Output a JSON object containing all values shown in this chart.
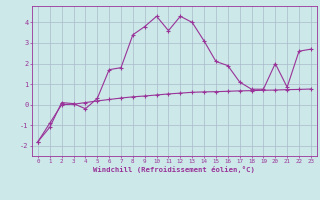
{
  "xlabel": "Windchill (Refroidissement éolien,°C)",
  "bg_color": "#cce8e8",
  "line_color": "#993399",
  "grid_color": "#aabbcc",
  "x_values": [
    0,
    1,
    2,
    3,
    4,
    5,
    6,
    7,
    8,
    9,
    10,
    11,
    12,
    13,
    14,
    15,
    16,
    17,
    18,
    19,
    20,
    21,
    22,
    23
  ],
  "line1_y": [
    -1.8,
    -1.1,
    0.1,
    0.05,
    -0.2,
    0.3,
    1.7,
    1.8,
    3.4,
    3.8,
    4.3,
    3.6,
    4.3,
    4.0,
    3.1,
    2.1,
    1.9,
    1.1,
    0.75,
    0.75,
    2.0,
    0.85,
    2.6,
    2.7
  ],
  "line2_y": [
    -1.8,
    -0.9,
    0.0,
    0.02,
    0.1,
    0.18,
    0.25,
    0.32,
    0.38,
    0.42,
    0.47,
    0.52,
    0.56,
    0.6,
    0.62,
    0.63,
    0.65,
    0.67,
    0.68,
    0.7,
    0.71,
    0.73,
    0.74,
    0.76
  ],
  "ylim": [
    -2.5,
    4.8
  ],
  "xlim": [
    -0.5,
    23.5
  ],
  "yticks": [
    -2,
    -1,
    0,
    1,
    2,
    3,
    4
  ],
  "xticks": [
    0,
    1,
    2,
    3,
    4,
    5,
    6,
    7,
    8,
    9,
    10,
    11,
    12,
    13,
    14,
    15,
    16,
    17,
    18,
    19,
    20,
    21,
    22,
    23
  ]
}
